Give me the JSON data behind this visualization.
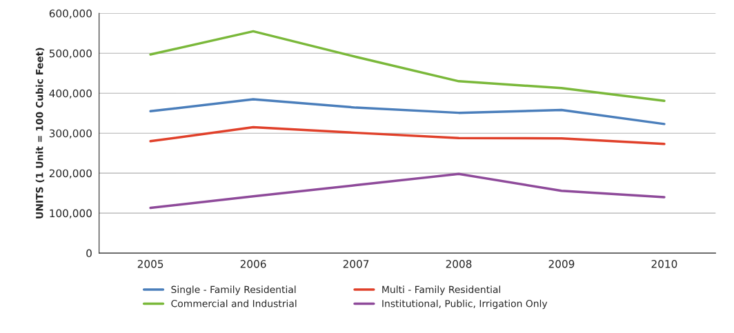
{
  "chart_data": {
    "type": "line",
    "ylabel": "UNITS (1 Unit = 100 Cubic Feet)",
    "categories": [
      "2005",
      "2006",
      "2007",
      "2008",
      "2009",
      "2010"
    ],
    "series": [
      {
        "name": "Single - Family Residential",
        "color": "#4a7ebb",
        "values": [
          355000,
          385000,
          364000,
          351000,
          358000,
          323000
        ]
      },
      {
        "name": "Multi - Family Residential",
        "color": "#e0402a",
        "values": [
          280000,
          315000,
          301000,
          288000,
          287000,
          273000
        ]
      },
      {
        "name": "Commercial and Industrial",
        "color": "#7ab83a",
        "values": [
          497000,
          555000,
          491000,
          430000,
          413000,
          381000
        ]
      },
      {
        "name": "Institutional, Public, Irrigation Only",
        "color": "#8e4a9a",
        "values": [
          113000,
          142000,
          170000,
          198000,
          156000,
          140000
        ]
      }
    ],
    "ylim": [
      0,
      600000
    ],
    "yticks": [
      0,
      {
        "value": 100000,
        "label": "100,000"
      },
      {
        "value": 200000,
        "label": "200,000"
      },
      {
        "value": 300000,
        "label": "300,000"
      },
      {
        "value": 400000,
        "label": "400,000"
      },
      {
        "value": 500000,
        "label": "500,000"
      },
      {
        "value": 600000,
        "label": "600,000"
      }
    ],
    "grid": "y",
    "legend": "bottom",
    "marker": "none",
    "line_style": "solid"
  }
}
